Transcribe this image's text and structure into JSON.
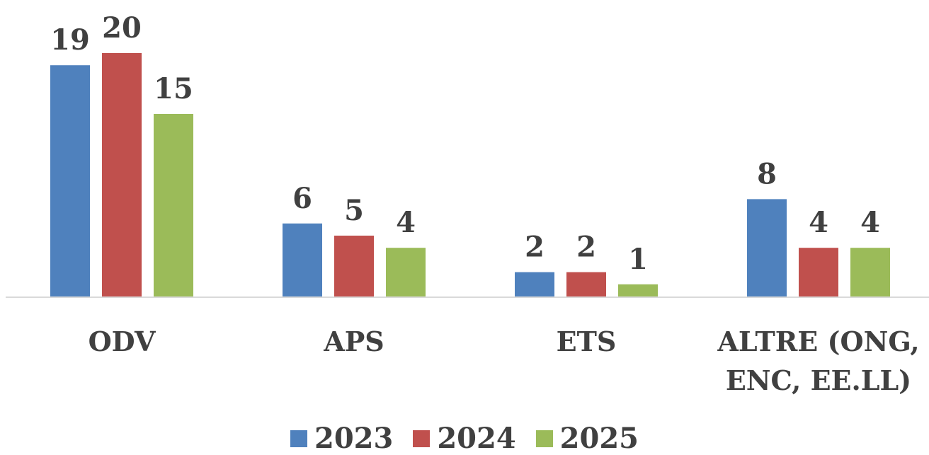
{
  "chart_data": {
    "type": "bar",
    "categories": [
      "ODV",
      "APS",
      "ETS",
      "ALTRE (ONG, ENC, EE.LL)"
    ],
    "series": [
      {
        "name": "2023",
        "color": "#4f81bd",
        "values": [
          19,
          6,
          2,
          8
        ]
      },
      {
        "name": "2024",
        "color": "#c0504d",
        "values": [
          20,
          5,
          2,
          4
        ]
      },
      {
        "name": "2025",
        "color": "#9bbb59",
        "values": [
          15,
          4,
          1,
          4
        ]
      }
    ],
    "ylim": [
      0,
      20
    ],
    "legend": "bottom"
  }
}
